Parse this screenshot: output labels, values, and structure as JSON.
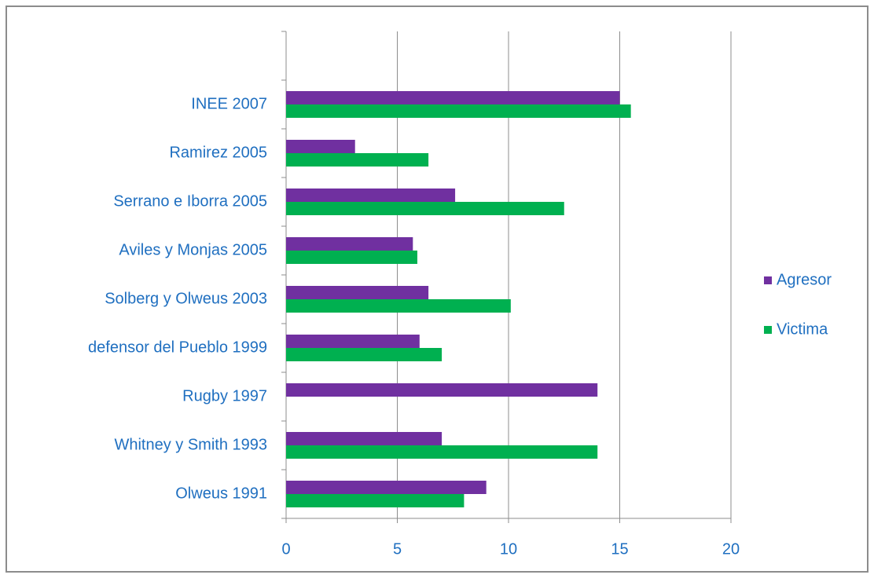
{
  "chart_data": {
    "type": "hbar",
    "categories": [
      null,
      "INEE 2007",
      "Ramirez 2005",
      "Serrano e Iborra 2005",
      "Aviles y Monjas 2005",
      "Solberg y Olweus 2003",
      "defensor del Pueblo 1999",
      "Rugby 1997",
      "Whitney y Smith 1993",
      "Olweus 1991"
    ],
    "series": [
      {
        "name": "Agresor",
        "color": "#7030a0",
        "values": [
          null,
          15,
          3.1,
          7.6,
          5.7,
          6.4,
          6,
          14,
          7,
          9
        ]
      },
      {
        "name": "Victima",
        "color": "#00b050",
        "values": [
          null,
          15.5,
          6.4,
          12.5,
          5.9,
          10.1,
          7,
          null,
          14,
          8
        ]
      }
    ],
    "xlim": [
      0,
      20
    ],
    "xticks": [
      0,
      5,
      10,
      15,
      20
    ],
    "grid": true,
    "legend": "right"
  }
}
